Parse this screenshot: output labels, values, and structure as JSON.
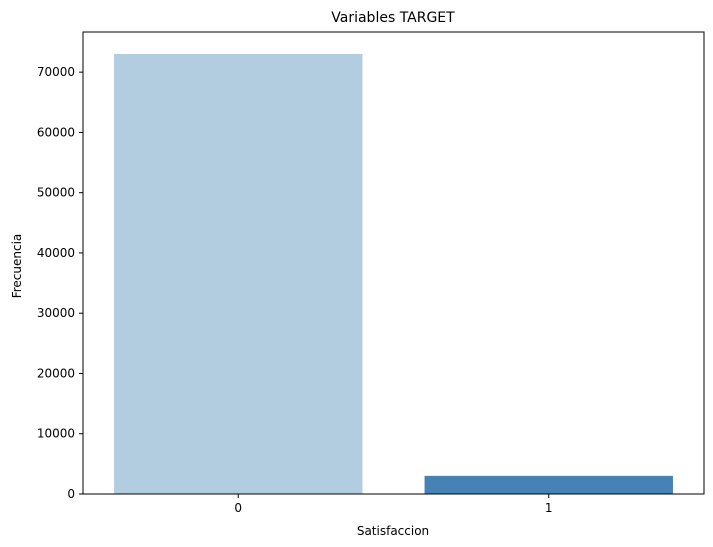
{
  "chart_data": {
    "type": "bar",
    "title": "Variables TARGET",
    "xlabel": "Satisfaccion",
    "ylabel": "Frecuencia",
    "categories": [
      "0",
      "1"
    ],
    "values": [
      73012,
      3008
    ],
    "colors": [
      "#b3cde0",
      "#4682b4"
    ],
    "ylim": [
      0,
      76663
    ],
    "yticks": [
      0,
      10000,
      20000,
      30000,
      40000,
      50000,
      60000,
      70000
    ],
    "ytick_labels": [
      "0",
      "10000",
      "20000",
      "30000",
      "40000",
      "50000",
      "60000",
      "70000"
    ],
    "grid": false,
    "legend": "none"
  }
}
